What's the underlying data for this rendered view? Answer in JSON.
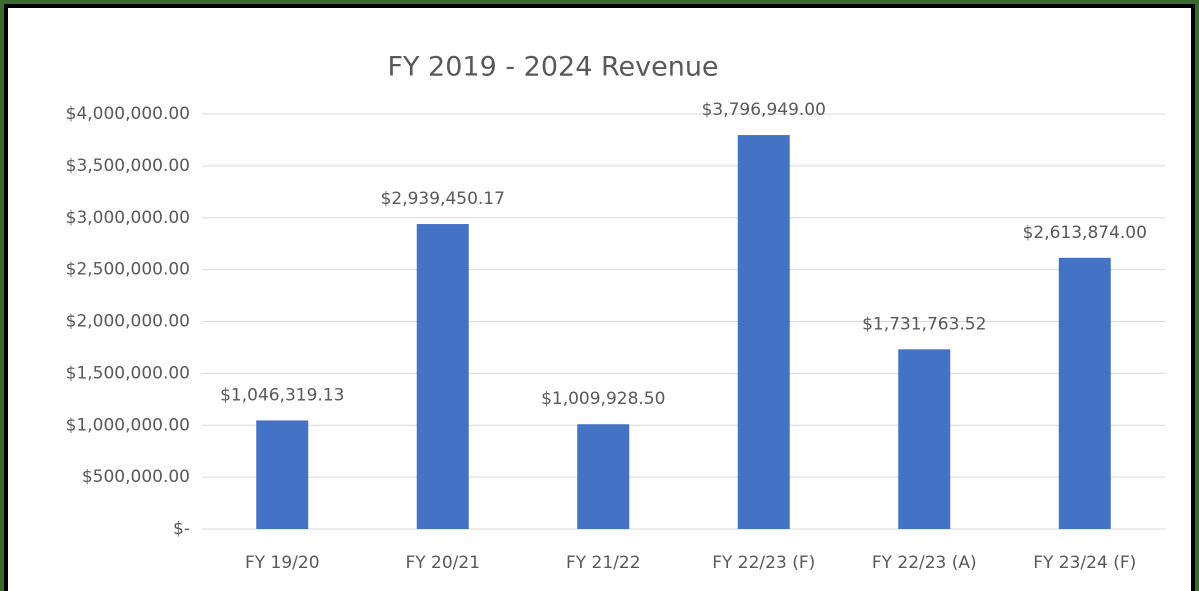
{
  "chart_data": {
    "type": "bar",
    "title": "FY 2019 - 2024 Revenue",
    "categories": [
      "FY 19/20",
      "FY 20/21",
      "FY 21/22",
      "FY 22/23 (F)",
      "FY 22/23 (A)",
      "FY 23/24 (F)"
    ],
    "values": [
      1046319.13,
      2939450.17,
      1009928.5,
      3796949,
      1731763.52,
      2613874
    ],
    "value_labels": [
      "$1,046,319.13",
      "$2,939,450.17",
      "$1,009,928.50",
      "$3,796,949.00",
      "$1,731,763.52",
      "$2,613,874.00"
    ],
    "color": "#4472c4",
    "ylim": [
      0,
      4000000
    ],
    "yticks": [
      {
        "value": 0,
        "label": "$-"
      },
      {
        "value": 500000,
        "label": "$500,000.00"
      },
      {
        "value": 1000000,
        "label": "$1,000,000.00"
      },
      {
        "value": 1500000,
        "label": "$1,500,000.00"
      },
      {
        "value": 2000000,
        "label": "$2,000,000.00"
      },
      {
        "value": 2500000,
        "label": "$2,500,000.00"
      },
      {
        "value": 3000000,
        "label": "$3,000,000.00"
      },
      {
        "value": 3500000,
        "label": "$3,500,000.00"
      },
      {
        "value": 4000000,
        "label": "$4,000,000.00"
      }
    ],
    "grid": true
  }
}
